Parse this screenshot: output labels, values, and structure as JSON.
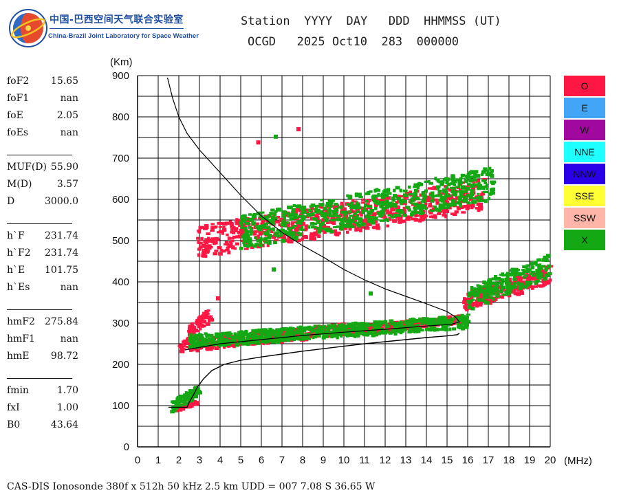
{
  "logo": {
    "title_cn": "中国-巴西空间天气联合实验室",
    "title_en": "China-Brazil Joint Laboratory for Space Weather"
  },
  "header": {
    "line1": "Station  YYYY  DAY   DDD  HHMMSS (UT)",
    "line2": "OCGD   2025 Oct10  283  000000"
  },
  "params": [
    {
      "name": "foF2",
      "value": "15.65"
    },
    {
      "name": "foF1",
      "value": "nan"
    },
    {
      "name": "foE",
      "value": "2.05"
    },
    {
      "name": "foEs",
      "value": "nan"
    },
    {
      "name": "MUF(D)",
      "value": "55.90"
    },
    {
      "name": "M(D)",
      "value": "3.57"
    },
    {
      "name": "D",
      "value": "3000.0"
    },
    {
      "name": "h`F",
      "value": "231.74"
    },
    {
      "name": "h`F2",
      "value": "231.74"
    },
    {
      "name": "h`E",
      "value": "101.75"
    },
    {
      "name": "h`Es",
      "value": "nan"
    },
    {
      "name": "hmF2",
      "value": "275.84"
    },
    {
      "name": "hmF1",
      "value": "nan"
    },
    {
      "name": "hmE",
      "value": "98.72"
    },
    {
      "name": "fmin",
      "value": "1.70"
    },
    {
      "name": "fxI",
      "value": "1.00"
    },
    {
      "name": "B0",
      "value": "43.64"
    }
  ],
  "legend": [
    {
      "label": "O",
      "color": "#ff1744"
    },
    {
      "label": "E",
      "color": "#42a5f5"
    },
    {
      "label": "W",
      "color": "#a0089e"
    },
    {
      "label": "NNE",
      "color": "#1effff"
    },
    {
      "label": "NNW",
      "color": "#2a00e8"
    },
    {
      "label": "SSE",
      "color": "#ffff33"
    },
    {
      "label": "SSW",
      "color": "#ffb5a8"
    },
    {
      "label": "X",
      "color": "#14a814"
    }
  ],
  "footer": "CAS-DIS Ionosonde 380f x 512h 50 kHz 2.5 km UDD = 007 7.08 S 36.65 W",
  "chart_data": {
    "type": "scatter",
    "xlabel": "(MHz)",
    "ylabel": "(Km)",
    "xlim": [
      0,
      20
    ],
    "ylim": [
      0,
      900
    ],
    "xticks": [
      "0",
      "1",
      "2",
      "3",
      "4",
      "5",
      "6",
      "7",
      "8",
      "9",
      "10",
      "11",
      "12",
      "13",
      "14",
      "15",
      "16",
      "17",
      "18",
      "19",
      "20"
    ],
    "yticks": [
      "0",
      "100",
      "200",
      "300",
      "400",
      "500",
      "600",
      "700",
      "800",
      "900"
    ],
    "grid": true,
    "legend_position": "right",
    "series": [
      {
        "name": "O",
        "color": "#ff1744",
        "bands": [
          {
            "x0": 1.8,
            "x1": 2.9,
            "y0": 85,
            "y1": 115
          },
          {
            "x0": 2.0,
            "x1": 10.0,
            "y0": 230,
            "y1": 300
          },
          {
            "x0": 2.4,
            "x1": 3.6,
            "y0": 260,
            "y1": 340
          },
          {
            "x0": 10.0,
            "x1": 15.8,
            "y0": 270,
            "y1": 320
          },
          {
            "x0": 15.8,
            "x1": 20.0,
            "y0": 330,
            "y1": 440
          },
          {
            "x0": 2.9,
            "x1": 16.8,
            "y0": 460,
            "y1": 650
          }
        ]
      },
      {
        "name": "X",
        "color": "#14a814",
        "bands": [
          {
            "x0": 1.6,
            "x1": 3.0,
            "y0": 85,
            "y1": 150
          },
          {
            "x0": 2.5,
            "x1": 16.0,
            "y0": 240,
            "y1": 320
          },
          {
            "x0": 16.0,
            "x1": 20.0,
            "y0": 330,
            "y1": 470
          },
          {
            "x0": 5.0,
            "x1": 17.3,
            "y0": 480,
            "y1": 680
          }
        ]
      }
    ],
    "profile": [
      [
        1.5,
        96
      ],
      [
        2.4,
        96
      ],
      [
        2.5,
        108
      ],
      [
        2.7,
        125
      ],
      [
        2.9,
        145
      ],
      [
        3.2,
        165
      ],
      [
        3.6,
        185
      ],
      [
        4.2,
        200
      ],
      [
        5.0,
        210
      ],
      [
        6.0,
        218
      ],
      [
        7.0,
        225
      ],
      [
        8.0,
        232
      ],
      [
        9.0,
        238
      ],
      [
        10.0,
        244
      ],
      [
        11.0,
        250
      ],
      [
        12.0,
        255
      ],
      [
        13.0,
        260
      ],
      [
        14.0,
        265
      ],
      [
        15.0,
        269
      ],
      [
        15.5,
        272
      ],
      [
        15.6,
        276
      ]
    ],
    "trace": [
      [
        1.45,
        895
      ],
      [
        1.7,
        845
      ],
      [
        2.0,
        800
      ],
      [
        2.4,
        760
      ],
      [
        3.0,
        720
      ],
      [
        4.0,
        665
      ],
      [
        5.0,
        610
      ],
      [
        6.0,
        560
      ],
      [
        7.0,
        520
      ],
      [
        8.0,
        488
      ],
      [
        9.0,
        460
      ],
      [
        10.0,
        430
      ],
      [
        11.0,
        405
      ],
      [
        12.0,
        383
      ],
      [
        13.0,
        365
      ],
      [
        14.0,
        347
      ],
      [
        15.0,
        328
      ],
      [
        15.4,
        315
      ],
      [
        15.6,
        303
      ],
      [
        15.2,
        297
      ],
      [
        14.0,
        293
      ],
      [
        12.0,
        285
      ],
      [
        10.0,
        278
      ],
      [
        8.0,
        270
      ],
      [
        6.0,
        260
      ],
      [
        4.0,
        250
      ],
      [
        2.3,
        235
      ]
    ],
    "outliers": [
      {
        "x": 5.85,
        "y": 738,
        "series": "O"
      },
      {
        "x": 6.7,
        "y": 752,
        "series": "X"
      },
      {
        "x": 7.8,
        "y": 770,
        "series": "O"
      },
      {
        "x": 6.6,
        "y": 430,
        "series": "X"
      },
      {
        "x": 11.3,
        "y": 372,
        "series": "X"
      },
      {
        "x": 3.9,
        "y": 360,
        "series": "O"
      }
    ]
  }
}
